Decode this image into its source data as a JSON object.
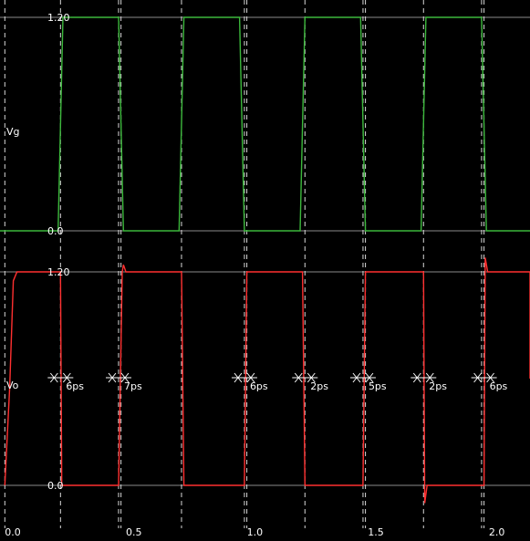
{
  "chart_data": {
    "type": "line",
    "x_unit": "ns",
    "x_ticks": [
      {
        "value": 0.0,
        "label": "0.0"
      },
      {
        "value": 0.5,
        "label": "0.5"
      },
      {
        "value": 1.0,
        "label": "1.0"
      },
      {
        "value": 1.5,
        "label": "1.5"
      },
      {
        "value": 2.0,
        "label": "2.0"
      }
    ],
    "xlim": [
      -0.02,
      2.17
    ],
    "cursor_times": [
      0.0,
      0.23,
      0.47,
      0.48,
      0.73,
      0.99,
      1.0,
      1.24,
      1.48,
      1.49,
      1.73,
      1.97,
      1.98
    ],
    "panels": [
      {
        "name": "Vg",
        "color": "#3cb83c",
        "ylim": [
          0.0,
          1.2
        ],
        "y_ticks": [
          {
            "value": 1.2,
            "label": "1.20"
          },
          {
            "value": 0.0,
            "label": "0.0"
          }
        ],
        "points": [
          [
            -0.02,
            0.0
          ],
          [
            0.22,
            0.0
          ],
          [
            0.24,
            1.2
          ],
          [
            0.47,
            1.2
          ],
          [
            0.49,
            0.0
          ],
          [
            0.72,
            0.0
          ],
          [
            0.74,
            1.2
          ],
          [
            0.97,
            1.2
          ],
          [
            0.99,
            0.0
          ],
          [
            1.22,
            0.0
          ],
          [
            1.24,
            1.2
          ],
          [
            1.47,
            1.2
          ],
          [
            1.49,
            0.0
          ],
          [
            1.72,
            0.0
          ],
          [
            1.74,
            1.2
          ],
          [
            1.97,
            1.2
          ],
          [
            1.99,
            0.0
          ],
          [
            2.17,
            0.0
          ]
        ]
      },
      {
        "name": "Vo",
        "color": "#ff3030",
        "ylim": [
          0.0,
          1.2
        ],
        "y_ticks": [
          {
            "value": 1.2,
            "label": "1.20"
          },
          {
            "value": 0.0,
            "label": "0.0"
          }
        ],
        "points": [
          [
            0.0,
            0.0
          ],
          [
            0.02,
            0.55
          ],
          [
            0.035,
            1.15
          ],
          [
            0.05,
            1.2
          ],
          [
            0.23,
            1.2
          ],
          [
            0.235,
            0.0
          ],
          [
            0.47,
            0.0
          ],
          [
            0.485,
            1.2
          ],
          [
            0.49,
            1.24
          ],
          [
            0.5,
            1.2
          ],
          [
            0.73,
            1.2
          ],
          [
            0.74,
            0.0
          ],
          [
            0.99,
            0.0
          ],
          [
            1.0,
            1.2
          ],
          [
            1.23,
            1.2
          ],
          [
            1.24,
            0.0
          ],
          [
            1.48,
            0.0
          ],
          [
            1.49,
            1.2
          ],
          [
            1.73,
            1.2
          ],
          [
            1.735,
            -0.1
          ],
          [
            1.745,
            0.0
          ],
          [
            1.98,
            0.0
          ],
          [
            1.985,
            1.28
          ],
          [
            1.995,
            1.2
          ],
          [
            2.17,
            1.2
          ],
          [
            2.17,
            0.6
          ]
        ]
      }
    ],
    "delay_annotations": [
      {
        "time": 0.23,
        "label": "6ps"
      },
      {
        "time": 0.47,
        "label": "7ps"
      },
      {
        "time": 0.99,
        "label": "6ps"
      },
      {
        "time": 1.24,
        "label": "2ps"
      },
      {
        "time": 1.48,
        "label": "5ps"
      },
      {
        "time": 1.73,
        "label": "2ps"
      },
      {
        "time": 1.98,
        "label": "6ps"
      },
      {
        "time": 2.23,
        "label": ""
      }
    ]
  }
}
